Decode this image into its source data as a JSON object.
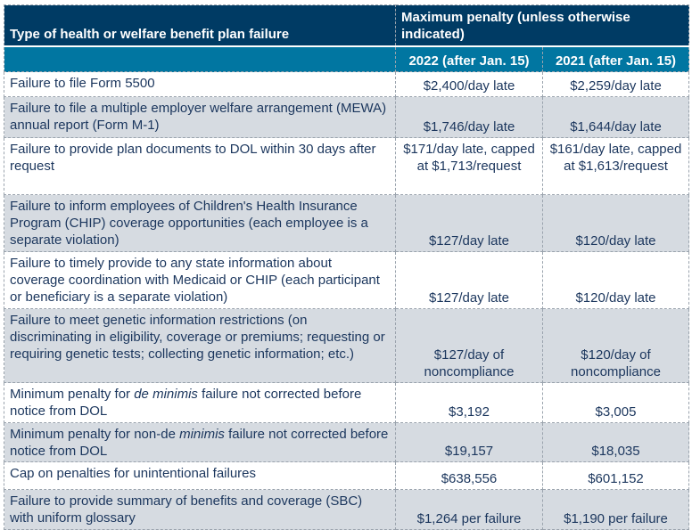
{
  "header": {
    "type_col": "Type of health or welfare benefit plan failure",
    "penalty_col": "Maximum penalty (unless otherwise indicated)",
    "year_2022": "2022 (after Jan. 15)",
    "year_2021": "2021 (after Jan. 15)"
  },
  "rows": [
    {
      "pre": "Failure to file Form 5500",
      "em": "",
      "post": "",
      "v2022": "$2,400/day late",
      "v2021": "$2,259/day late"
    },
    {
      "pre": "Failure to file a multiple employer welfare arrangement (MEWA) annual report (Form M-1)",
      "em": "",
      "post": "",
      "v2022": "$1,746/day late",
      "v2021": "$1,644/day late"
    },
    {
      "pre": "Failure to provide plan documents to DOL within 30 days after request",
      "em": "",
      "post": "",
      "v2022": "$171/day late, capped at $1,713/request",
      "v2021": "$161/day late, capped at $1,613/request"
    },
    {
      "pre": "Failure to inform employees of Children's Health Insurance Program (CHIP) coverage opportunities (each employee is a separate violation)",
      "em": "",
      "post": "",
      "v2022": "$127/day late",
      "v2021": "$120/day late"
    },
    {
      "pre": "Failure to timely provide to any state information about coverage coordination with Medicaid or CHIP (each participant or beneficiary is a separate violation)",
      "em": "",
      "post": "",
      "v2022": "$127/day late",
      "v2021": "$120/day late"
    },
    {
      "pre": "Failure to meet genetic information restrictions (on discriminating in eligibility, coverage or premiums; requesting or requiring genetic tests; collecting genetic information; etc.)",
      "em": "",
      "post": "",
      "v2022": "$127/day of noncompliance",
      "v2021": "$120/day of noncompliance"
    },
    {
      "pre": "Minimum penalty for ",
      "em": "de minimis",
      "post": " failure not corrected before notice from DOL",
      "v2022": "$3,192",
      "v2021": "$3,005"
    },
    {
      "pre": "Minimum penalty for non-de ",
      "em": "minimis",
      "post": " failure not corrected before notice from DOL",
      "v2022": "$19,157",
      "v2021": "$18,035"
    },
    {
      "pre": "Cap on penalties for unintentional failures",
      "em": "",
      "post": "",
      "v2022": "$638,556",
      "v2021": "$601,152"
    },
    {
      "pre": "Failure to provide summary of benefits and coverage (SBC) with uniform glossary",
      "em": "",
      "post": "",
      "v2022": "$1,264 per failure",
      "v2021": "$1,190 per failure"
    }
  ]
}
